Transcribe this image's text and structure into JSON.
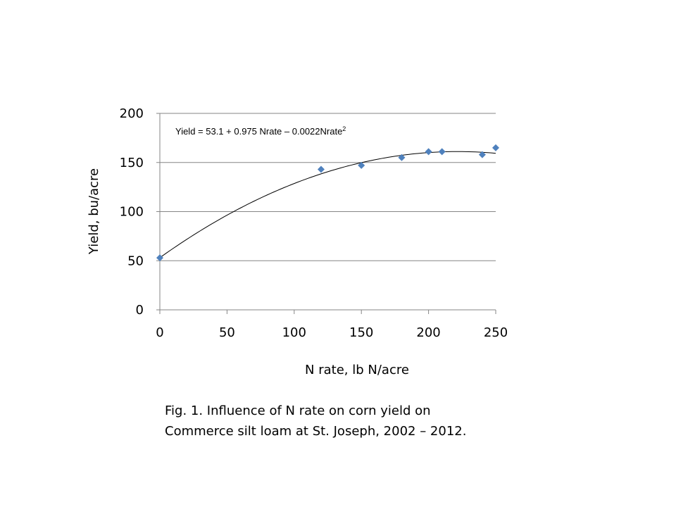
{
  "chart_data": {
    "type": "scatter",
    "xlabel": "N rate, lb N/acre",
    "ylabel": "Yield, bu/acre",
    "xlim": [
      0,
      250
    ],
    "ylim": [
      0,
      200
    ],
    "x_ticks": [
      "0",
      "50",
      "100",
      "150",
      "200",
      "250"
    ],
    "y_ticks": [
      "0",
      "50",
      "100",
      "150",
      "200"
    ],
    "grid": "horizontal",
    "legend": "none",
    "series": [
      {
        "x": [
          0,
          120,
          150,
          180,
          200,
          210,
          240,
          250
        ],
        "y": [
          53,
          143,
          147,
          155,
          161,
          161,
          158,
          165
        ]
      }
    ],
    "trendline": {
      "type": "polynomial",
      "coefficients": [
        53.1,
        0.975,
        -0.0022
      ],
      "equation_main": "Yield = 53.1 + 0.975 Nrate – 0.0022Nrate",
      "equation_sup": "2"
    },
    "marker_color": "#4f81bd",
    "caption_lines": [
      "Fig. 1. Influence of N rate on corn yield on",
      "Commerce silt loam at St. Joseph, 2002 – 2012."
    ]
  }
}
